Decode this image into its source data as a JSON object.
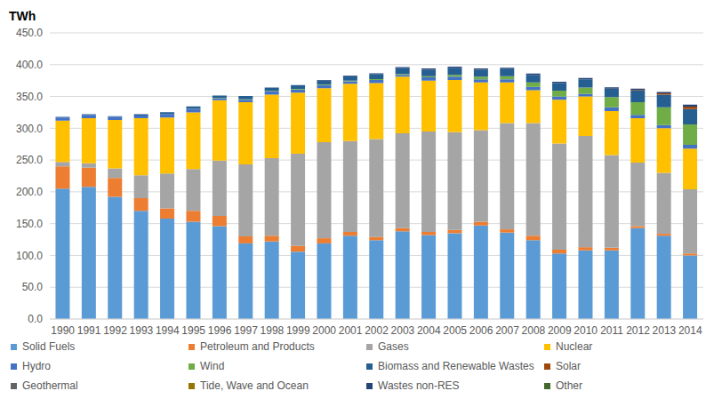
{
  "chart_data": {
    "type": "bar",
    "stacked": true,
    "grid": true,
    "legend": "bottom",
    "ylabel": "TWh",
    "categories": [
      "1990",
      "1991",
      "1992",
      "1993",
      "1994",
      "1995",
      "1996",
      "1997",
      "1998",
      "1999",
      "2000",
      "2001",
      "2002",
      "2003",
      "2004",
      "2005",
      "2006",
      "2007",
      "2008",
      "2009",
      "2010",
      "2011",
      "2012",
      "2013",
      "2014"
    ],
    "ylim": [
      0,
      450
    ],
    "yticks": [
      {
        "value": 0,
        "label": "0.0"
      },
      {
        "value": 50,
        "label": "50.0"
      },
      {
        "value": 100,
        "label": "100.0"
      },
      {
        "value": 150,
        "label": "150.0"
      },
      {
        "value": 200,
        "label": "200.0"
      },
      {
        "value": 250,
        "label": "250.0"
      },
      {
        "value": 300,
        "label": "300.0"
      },
      {
        "value": 350,
        "label": "350.0"
      },
      {
        "value": 400,
        "label": "400.0"
      },
      {
        "value": 450,
        "label": "450.0"
      }
    ],
    "series": [
      {
        "name": "Solid Fuels",
        "color": "#5B9BD5",
        "values": [
          205,
          208,
          192,
          170,
          158,
          153,
          146,
          119,
          122,
          106,
          119,
          131,
          124,
          138,
          132,
          135,
          147,
          136,
          124,
          103,
          108,
          108,
          143,
          131,
          100
        ]
      },
      {
        "name": "Petroleum and Products",
        "color": "#ED7D31",
        "values": [
          35,
          30,
          30,
          20,
          16,
          17,
          16,
          11,
          9,
          9,
          8,
          6,
          5,
          5,
          5,
          5,
          6,
          5,
          7,
          6,
          5,
          4,
          3,
          3,
          3
        ]
      },
      {
        "name": "Gases",
        "color": "#A5A5A5",
        "values": [
          7,
          7,
          15,
          36,
          55,
          66,
          87,
          113,
          122,
          145,
          151,
          143,
          154,
          149,
          158,
          154,
          144,
          167,
          177,
          167,
          175,
          146,
          100,
          96,
          101
        ]
      },
      {
        "name": "Nuclear",
        "color": "#FFC000",
        "values": [
          65,
          71,
          76,
          90,
          88,
          89,
          95,
          98,
          100,
          96,
          85,
          90,
          88,
          89,
          80,
          82,
          75,
          64,
          52,
          69,
          62,
          69,
          70,
          70,
          64
        ]
      },
      {
        "name": "Hydro",
        "color": "#4472C4",
        "values": [
          5,
          5,
          5,
          4,
          5,
          5,
          3,
          4,
          5,
          5,
          5,
          4,
          5,
          3,
          5,
          5,
          5,
          5,
          5,
          5,
          4,
          6,
          5,
          5,
          6
        ]
      },
      {
        "name": "Wind",
        "color": "#70AD47",
        "values": [
          0,
          0,
          0,
          0.2,
          0.3,
          0.4,
          0.5,
          0.7,
          0.9,
          0.9,
          1,
          1,
          1.3,
          1.3,
          2,
          3,
          4,
          5,
          7,
          9,
          10,
          16,
          20,
          28,
          32
        ]
      },
      {
        "name": "Biomass and Renewable Wastes",
        "color": "#255E91",
        "values": [
          1,
          1,
          1,
          2,
          3,
          4,
          4,
          5,
          5,
          6,
          6,
          7,
          8,
          9,
          10,
          11,
          11,
          11,
          12,
          12,
          13,
          13,
          18,
          20,
          24
        ]
      },
      {
        "name": "Solar",
        "color": "#9E480E",
        "values": [
          0,
          0,
          0,
          0,
          0,
          0,
          0,
          0,
          0,
          0,
          0,
          0,
          0,
          0,
          0,
          0,
          0,
          0,
          0,
          0,
          0.04,
          0.24,
          1.35,
          2,
          4
        ]
      },
      {
        "name": "Geothermal",
        "color": "#636363",
        "values": [
          0,
          0,
          0,
          0,
          0,
          0,
          0,
          0,
          0,
          0,
          0,
          0,
          0,
          0,
          0,
          0,
          0,
          0,
          0,
          0,
          0,
          0,
          0,
          0,
          0
        ]
      },
      {
        "name": "Tide, Wave and Ocean",
        "color": "#997300",
        "values": [
          0,
          0,
          0,
          0,
          0,
          0,
          0,
          0,
          0,
          0,
          0,
          0,
          0,
          0,
          0,
          0,
          0,
          0,
          0,
          0,
          0,
          0,
          0,
          0,
          0
        ]
      },
      {
        "name": "Wastes non-RES",
        "color": "#264478",
        "values": [
          0,
          0,
          0,
          0,
          0,
          0,
          0,
          0,
          0,
          0,
          1,
          1,
          1,
          2,
          2,
          2,
          2,
          2,
          2,
          2,
          2,
          2,
          2,
          2,
          3
        ]
      },
      {
        "name": "Other",
        "color": "#43682B",
        "values": [
          0,
          0,
          0,
          0,
          0,
          0,
          0,
          0,
          0,
          0,
          0,
          0,
          0,
          0,
          0,
          0,
          0,
          0,
          0,
          0,
          0,
          0,
          0,
          0,
          0
        ]
      }
    ]
  }
}
